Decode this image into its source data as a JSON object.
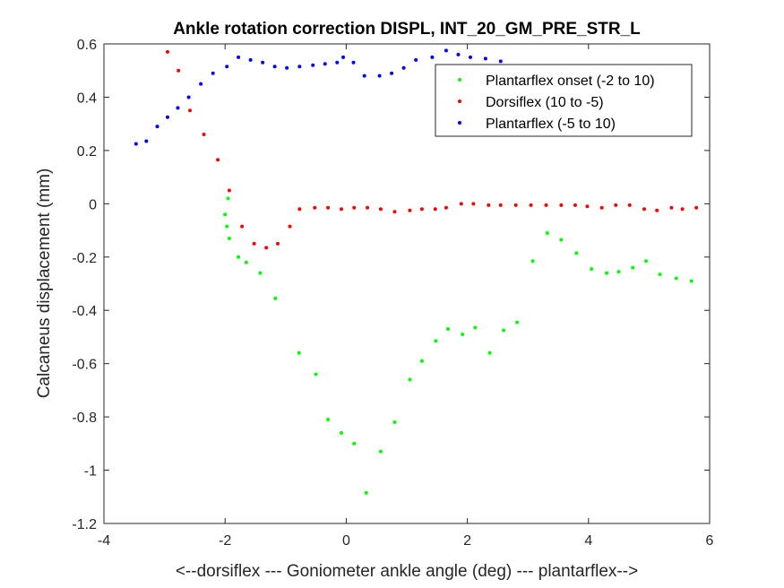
{
  "chart_data": {
    "type": "scatter",
    "title": "Ankle rotation correction DISPL, INT_20_GM_PRE_STR_L",
    "xlabel": "<--dorsiflex --- Goniometer ankle angle (deg) --- plantarflex-->",
    "ylabel": "Calcaneus displacement (mm)",
    "xlim": [
      -4,
      6
    ],
    "ylim": [
      -1.2,
      0.6
    ],
    "xticks": [
      -4,
      -2,
      0,
      2,
      4,
      6
    ],
    "xtick_labels": [
      "-4",
      "-2",
      "0",
      "2",
      "4",
      "6"
    ],
    "yticks": [
      -1.2,
      -1,
      -0.8,
      -0.6,
      -0.4,
      -0.2,
      0,
      0.2,
      0.4,
      0.6
    ],
    "ytick_labels": [
      "-1.2",
      "-1",
      "-0.8",
      "-0.6",
      "-0.4",
      "-0.2",
      "0",
      "0.2",
      "0.4",
      "0.6"
    ],
    "grid": false,
    "legend_position": "top-right",
    "series": [
      {
        "name": "Plantarflex onset (-2 to 10)",
        "color": "#00ff00",
        "x": [
          -2.0,
          -1.97,
          -1.95,
          -1.93,
          -1.78,
          -1.65,
          -1.42,
          -1.17,
          -0.78,
          -0.5,
          -0.3,
          -0.08,
          0.13,
          0.57,
          0.33,
          0.8,
          1.05,
          1.25,
          1.48,
          1.68,
          1.92,
          2.13,
          2.37,
          2.6,
          2.82,
          3.08,
          3.32,
          3.55,
          3.8,
          4.05,
          4.3,
          4.5,
          4.73,
          4.95,
          5.18,
          5.45,
          5.7
        ],
        "y": [
          -0.04,
          -0.085,
          0.02,
          -0.13,
          -0.2,
          -0.22,
          -0.26,
          -0.355,
          -0.56,
          -0.64,
          -0.81,
          -0.86,
          -0.9,
          -0.93,
          -1.085,
          -0.82,
          -0.66,
          -0.59,
          -0.515,
          -0.47,
          -0.49,
          -0.465,
          -0.56,
          -0.475,
          -0.445,
          -0.215,
          -0.11,
          -0.135,
          -0.185,
          -0.245,
          -0.26,
          -0.255,
          -0.24,
          -0.215,
          -0.265,
          -0.28,
          -0.29
        ]
      },
      {
        "name": "Dorsiflex (10 to -5)",
        "color": "#ff0000",
        "x": [
          -2.95,
          -2.77,
          -2.58,
          -2.35,
          -2.12,
          -1.93,
          -1.72,
          -1.52,
          -1.32,
          -1.13,
          -0.93,
          -0.77,
          -0.52,
          -0.3,
          -0.08,
          0.13,
          0.35,
          0.57,
          0.8,
          1.05,
          1.25,
          1.47,
          1.65,
          1.9,
          2.1,
          2.35,
          2.55,
          2.8,
          3.05,
          3.3,
          3.55,
          3.78,
          3.98,
          4.22,
          4.45,
          4.68,
          4.92,
          5.13,
          5.37,
          5.55,
          5.78
        ],
        "y": [
          0.57,
          0.5,
          0.35,
          0.26,
          0.165,
          0.05,
          -0.085,
          -0.15,
          -0.165,
          -0.15,
          -0.085,
          -0.02,
          -0.015,
          -0.015,
          -0.02,
          -0.015,
          -0.015,
          -0.02,
          -0.03,
          -0.025,
          -0.02,
          -0.02,
          -0.015,
          0.0,
          0.0,
          -0.005,
          -0.005,
          -0.005,
          -0.005,
          -0.005,
          -0.005,
          -0.005,
          -0.01,
          -0.015,
          -0.005,
          -0.005,
          -0.02,
          -0.025,
          -0.015,
          -0.02,
          -0.015
        ]
      },
      {
        "name": "Plantarflex (-5 to 10)",
        "color": "#0000ff",
        "x": [
          -3.47,
          -3.3,
          -3.12,
          -2.95,
          -2.78,
          -2.6,
          -2.4,
          -2.2,
          -1.97,
          -1.78,
          -1.58,
          -1.38,
          -1.18,
          -0.98,
          -0.77,
          -0.55,
          -0.35,
          -0.15,
          -0.05,
          0.12,
          0.3,
          0.55,
          0.75,
          0.95,
          1.15,
          1.42,
          1.65,
          1.85,
          2.05,
          2.3,
          2.55
        ],
        "y": [
          0.225,
          0.235,
          0.29,
          0.325,
          0.36,
          0.4,
          0.45,
          0.49,
          0.515,
          0.55,
          0.54,
          0.53,
          0.515,
          0.51,
          0.515,
          0.52,
          0.525,
          0.53,
          0.55,
          0.53,
          0.48,
          0.48,
          0.49,
          0.51,
          0.54,
          0.55,
          0.575,
          0.56,
          0.55,
          0.545,
          0.535
        ]
      }
    ]
  }
}
